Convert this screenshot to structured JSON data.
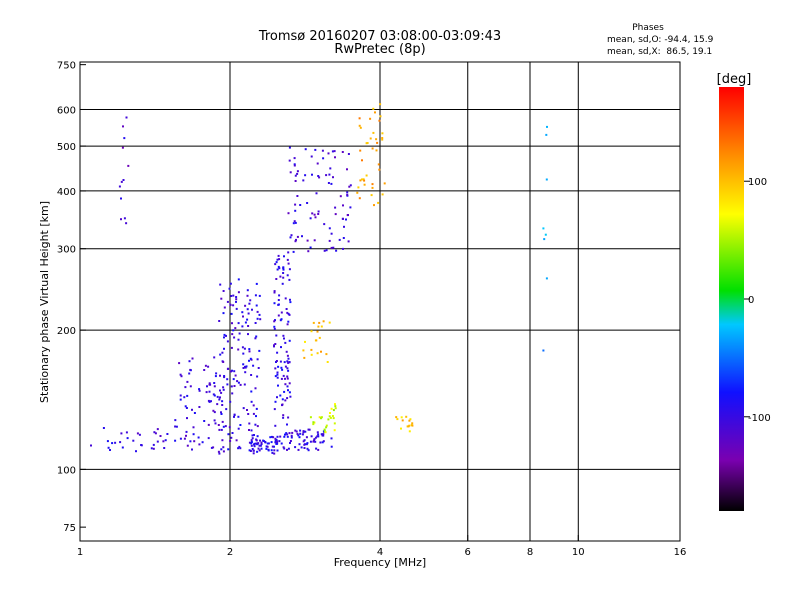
{
  "chart_data": {
    "type": "scatter",
    "title": "Tromsø 20160207 03:08:00-03:09:43",
    "subtitle": "RwPretec (8p)",
    "xlabel": "Frequency [MHz]",
    "ylabel": "Stationary phase Virtual Height [km]",
    "x_scale": "log2",
    "y_scale": "log",
    "xlim": [
      1,
      16
    ],
    "ylim": [
      70,
      760
    ],
    "x_ticks": [
      1,
      2,
      4,
      6,
      8,
      10,
      16
    ],
    "x_tick_labels": [
      "1",
      "2",
      "4",
      "6",
      "8",
      "10",
      "16"
    ],
    "x_gridlines": [
      2,
      4,
      6,
      8,
      10
    ],
    "y_ticks": [
      75,
      100,
      200,
      300,
      400,
      500,
      600,
      750
    ],
    "y_tick_labels": [
      "75",
      "100",
      "200",
      "300",
      "400",
      "500",
      "600",
      "750"
    ],
    "y_gridlines": [
      100,
      200,
      300,
      400,
      500,
      600
    ],
    "grid": true,
    "phase_stats": {
      "title": "Phases",
      "line1": "mean, sd,O: -94.4, 15.9",
      "line2": "mean, sd,X:  86.5, 19.1"
    },
    "colorbar": {
      "label": "[deg]",
      "range": [
        -180,
        180
      ],
      "ticks": [
        100,
        0,
        -100
      ],
      "tick_labels": [
        "100",
        "0",
        "-100"
      ],
      "colormap": "rainbow (black→purple→blue→cyan→green→yellow→orange→red)"
    },
    "clusters": [
      {
        "n": 30,
        "f": [
          1.05,
          1.5
        ],
        "h": [
          108,
          125
        ],
        "phase": -100
      },
      {
        "n": 80,
        "f": [
          1.55,
          1.95
        ],
        "h": [
          110,
          175
        ],
        "phase": -105
      },
      {
        "n": 160,
        "f": [
          1.9,
          2.3
        ],
        "h": [
          108,
          260
        ],
        "phase": -100
      },
      {
        "n": 50,
        "f": [
          2.2,
          2.5
        ],
        "h": [
          108,
          118
        ],
        "phase": -95
      },
      {
        "n": 120,
        "f": [
          2.45,
          2.65
        ],
        "h": [
          110,
          300
        ],
        "phase": -98
      },
      {
        "n": 60,
        "f": [
          2.6,
          3.2
        ],
        "h": [
          110,
          122
        ],
        "phase": -100
      },
      {
        "n": 90,
        "f": [
          2.6,
          3.5
        ],
        "h": [
          295,
          500
        ],
        "phase": -105
      },
      {
        "n": 20,
        "f": [
          2.8,
          3.2
        ],
        "h": [
          170,
          210
        ],
        "phase": 100
      },
      {
        "n": 25,
        "f": [
          2.9,
          3.3
        ],
        "h": [
          120,
          140
        ],
        "phase": 60
      },
      {
        "n": 40,
        "f": [
          3.6,
          4.1
        ],
        "h": [
          370,
          620
        ],
        "phase": 110
      },
      {
        "n": 15,
        "f": [
          4.3,
          4.7
        ],
        "h": [
          120,
          130
        ],
        "phase": 95
      },
      {
        "n": 12,
        "f": [
          1.2,
          1.25
        ],
        "h": [
          330,
          600
        ],
        "phase": -110
      },
      {
        "n": 8,
        "f": [
          8.5,
          8.7
        ],
        "h": [
          180,
          560
        ],
        "phase": -40
      }
    ]
  }
}
